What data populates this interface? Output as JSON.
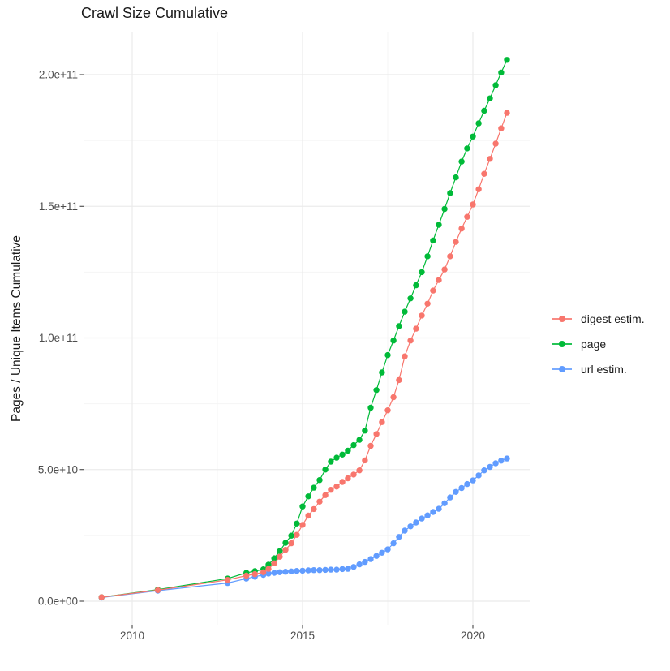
{
  "chart_data": {
    "type": "line",
    "title": "Crawl Size Cumulative",
    "xlabel": "",
    "ylabel": "Pages / Unique Items Cumulative",
    "legend_position": "right",
    "grid": true,
    "value_unit": "pages, values stored in billions (1e9)",
    "xlim": [
      2008.6,
      2021.7
    ],
    "ylim_e9": [
      -10,
      216
    ],
    "x_ticks": [
      {
        "value": 2010,
        "label": "2010"
      },
      {
        "value": 2015,
        "label": "2015"
      },
      {
        "value": 2020,
        "label": "2020"
      }
    ],
    "x_minor_ticks": [
      2012.5,
      2017.5
    ],
    "y_ticks": [
      {
        "value_e9": 0,
        "label": "0.0e+00"
      },
      {
        "value_e9": 50,
        "label": "5.0e+10"
      },
      {
        "value_e9": 100,
        "label": "1.0e+11"
      },
      {
        "value_e9": 150,
        "label": "1.5e+11"
      },
      {
        "value_e9": 200,
        "label": "2.0e+11"
      }
    ],
    "y_minor_ticks_e9": [
      25,
      75,
      125,
      175
    ],
    "series": [
      {
        "name": "digest estim.",
        "color": "#F8766D",
        "points_year_e9": [
          [
            2009.1,
            1.5
          ],
          [
            2010.75,
            4.2
          ],
          [
            2012.8,
            8.1
          ],
          [
            2013.35,
            9.7
          ],
          [
            2013.6,
            10.3
          ],
          [
            2013.85,
            11.0
          ],
          [
            2014.0,
            12.3
          ],
          [
            2014.17,
            14.4
          ],
          [
            2014.33,
            16.9
          ],
          [
            2014.5,
            19.5
          ],
          [
            2014.67,
            22.0
          ],
          [
            2014.83,
            25.2
          ],
          [
            2015.0,
            29.0
          ],
          [
            2015.17,
            32.5
          ],
          [
            2015.33,
            35.0
          ],
          [
            2015.5,
            37.8
          ],
          [
            2015.67,
            40.3
          ],
          [
            2015.83,
            42.3
          ],
          [
            2016.0,
            43.5
          ],
          [
            2016.17,
            45.3
          ],
          [
            2016.33,
            46.7
          ],
          [
            2016.5,
            48.1
          ],
          [
            2016.67,
            49.7
          ],
          [
            2016.83,
            53.5
          ],
          [
            2017.0,
            59.0
          ],
          [
            2017.17,
            63.5
          ],
          [
            2017.33,
            68.0
          ],
          [
            2017.5,
            72.5
          ],
          [
            2017.67,
            77.5
          ],
          [
            2017.83,
            84.0
          ],
          [
            2018.0,
            93.0
          ],
          [
            2018.17,
            99.0
          ],
          [
            2018.33,
            103.5
          ],
          [
            2018.5,
            108.5
          ],
          [
            2018.67,
            113.0
          ],
          [
            2018.83,
            118.0
          ],
          [
            2019.0,
            122.0
          ],
          [
            2019.17,
            126.0
          ],
          [
            2019.33,
            131.0
          ],
          [
            2019.5,
            136.5
          ],
          [
            2019.67,
            141.5
          ],
          [
            2019.83,
            146.0
          ],
          [
            2020.0,
            150.7
          ],
          [
            2020.17,
            156.5
          ],
          [
            2020.33,
            162.3
          ],
          [
            2020.5,
            168.0
          ],
          [
            2020.67,
            173.8
          ],
          [
            2020.83,
            179.6
          ],
          [
            2021.0,
            185.5
          ]
        ]
      },
      {
        "name": "page",
        "color": "#00BA38",
        "points_year_e9": [
          [
            2009.1,
            1.5
          ],
          [
            2010.75,
            4.4
          ],
          [
            2012.8,
            8.6
          ],
          [
            2013.35,
            10.8
          ],
          [
            2013.6,
            11.4
          ],
          [
            2013.85,
            12.1
          ],
          [
            2014.0,
            13.9
          ],
          [
            2014.17,
            16.3
          ],
          [
            2014.33,
            19.0
          ],
          [
            2014.5,
            22.2
          ],
          [
            2014.67,
            24.9
          ],
          [
            2014.83,
            29.5
          ],
          [
            2015.0,
            36.0
          ],
          [
            2015.17,
            39.8
          ],
          [
            2015.33,
            43.1
          ],
          [
            2015.5,
            46.0
          ],
          [
            2015.67,
            50.0
          ],
          [
            2015.83,
            53.0
          ],
          [
            2016.0,
            54.5
          ],
          [
            2016.17,
            55.7
          ],
          [
            2016.33,
            57.2
          ],
          [
            2016.5,
            59.3
          ],
          [
            2016.67,
            61.3
          ],
          [
            2016.83,
            64.8
          ],
          [
            2017.0,
            73.5
          ],
          [
            2017.17,
            80.2
          ],
          [
            2017.33,
            86.9
          ],
          [
            2017.5,
            93.5
          ],
          [
            2017.67,
            99.0
          ],
          [
            2017.83,
            104.5
          ],
          [
            2018.0,
            110.0
          ],
          [
            2018.17,
            115.0
          ],
          [
            2018.33,
            120.0
          ],
          [
            2018.5,
            125.0
          ],
          [
            2018.67,
            131.0
          ],
          [
            2018.83,
            137.0
          ],
          [
            2019.0,
            143.0
          ],
          [
            2019.17,
            149.0
          ],
          [
            2019.33,
            155.0
          ],
          [
            2019.5,
            161.0
          ],
          [
            2019.67,
            167.0
          ],
          [
            2019.83,
            172.0
          ],
          [
            2020.0,
            176.5
          ],
          [
            2020.17,
            181.5
          ],
          [
            2020.33,
            186.3
          ],
          [
            2020.5,
            191.0
          ],
          [
            2020.67,
            196.0
          ],
          [
            2020.83,
            200.8
          ],
          [
            2021.0,
            205.6
          ]
        ]
      },
      {
        "name": "url estim.",
        "color": "#619CFF",
        "points_year_e9": [
          [
            2009.1,
            1.4
          ],
          [
            2010.75,
            4.0
          ],
          [
            2012.8,
            6.9
          ],
          [
            2013.35,
            8.6
          ],
          [
            2013.6,
            9.3
          ],
          [
            2013.85,
            10.0
          ],
          [
            2014.0,
            10.5
          ],
          [
            2014.17,
            10.8
          ],
          [
            2014.33,
            11.0
          ],
          [
            2014.5,
            11.2
          ],
          [
            2014.67,
            11.3
          ],
          [
            2014.83,
            11.5
          ],
          [
            2015.0,
            11.6
          ],
          [
            2015.17,
            11.7
          ],
          [
            2015.33,
            11.8
          ],
          [
            2015.5,
            11.8
          ],
          [
            2015.67,
            11.9
          ],
          [
            2015.83,
            12.0
          ],
          [
            2016.0,
            12.0
          ],
          [
            2016.17,
            12.2
          ],
          [
            2016.33,
            12.3
          ],
          [
            2016.5,
            13.0
          ],
          [
            2016.67,
            14.0
          ],
          [
            2016.83,
            14.9
          ],
          [
            2017.0,
            16.0
          ],
          [
            2017.17,
            17.2
          ],
          [
            2017.33,
            18.4
          ],
          [
            2017.5,
            19.7
          ],
          [
            2017.67,
            22.0
          ],
          [
            2017.83,
            24.4
          ],
          [
            2018.0,
            26.8
          ],
          [
            2018.17,
            28.4
          ],
          [
            2018.33,
            29.9
          ],
          [
            2018.5,
            31.4
          ],
          [
            2018.67,
            32.6
          ],
          [
            2018.83,
            33.9
          ],
          [
            2019.0,
            35.1
          ],
          [
            2019.17,
            37.2
          ],
          [
            2019.33,
            39.4
          ],
          [
            2019.5,
            41.5
          ],
          [
            2019.67,
            43.0
          ],
          [
            2019.83,
            44.5
          ],
          [
            2020.0,
            45.9
          ],
          [
            2020.17,
            47.8
          ],
          [
            2020.33,
            49.7
          ],
          [
            2020.5,
            51.0
          ],
          [
            2020.67,
            52.4
          ],
          [
            2020.83,
            53.4
          ],
          [
            2021.0,
            54.2
          ]
        ]
      }
    ],
    "colors": {
      "grid_major": "#EBEBEB",
      "grid_minor": "#F4F4F4",
      "tick_mark": "#333333",
      "tick_label": "#4D4D4D",
      "title_text": "#1A1A1A"
    }
  }
}
